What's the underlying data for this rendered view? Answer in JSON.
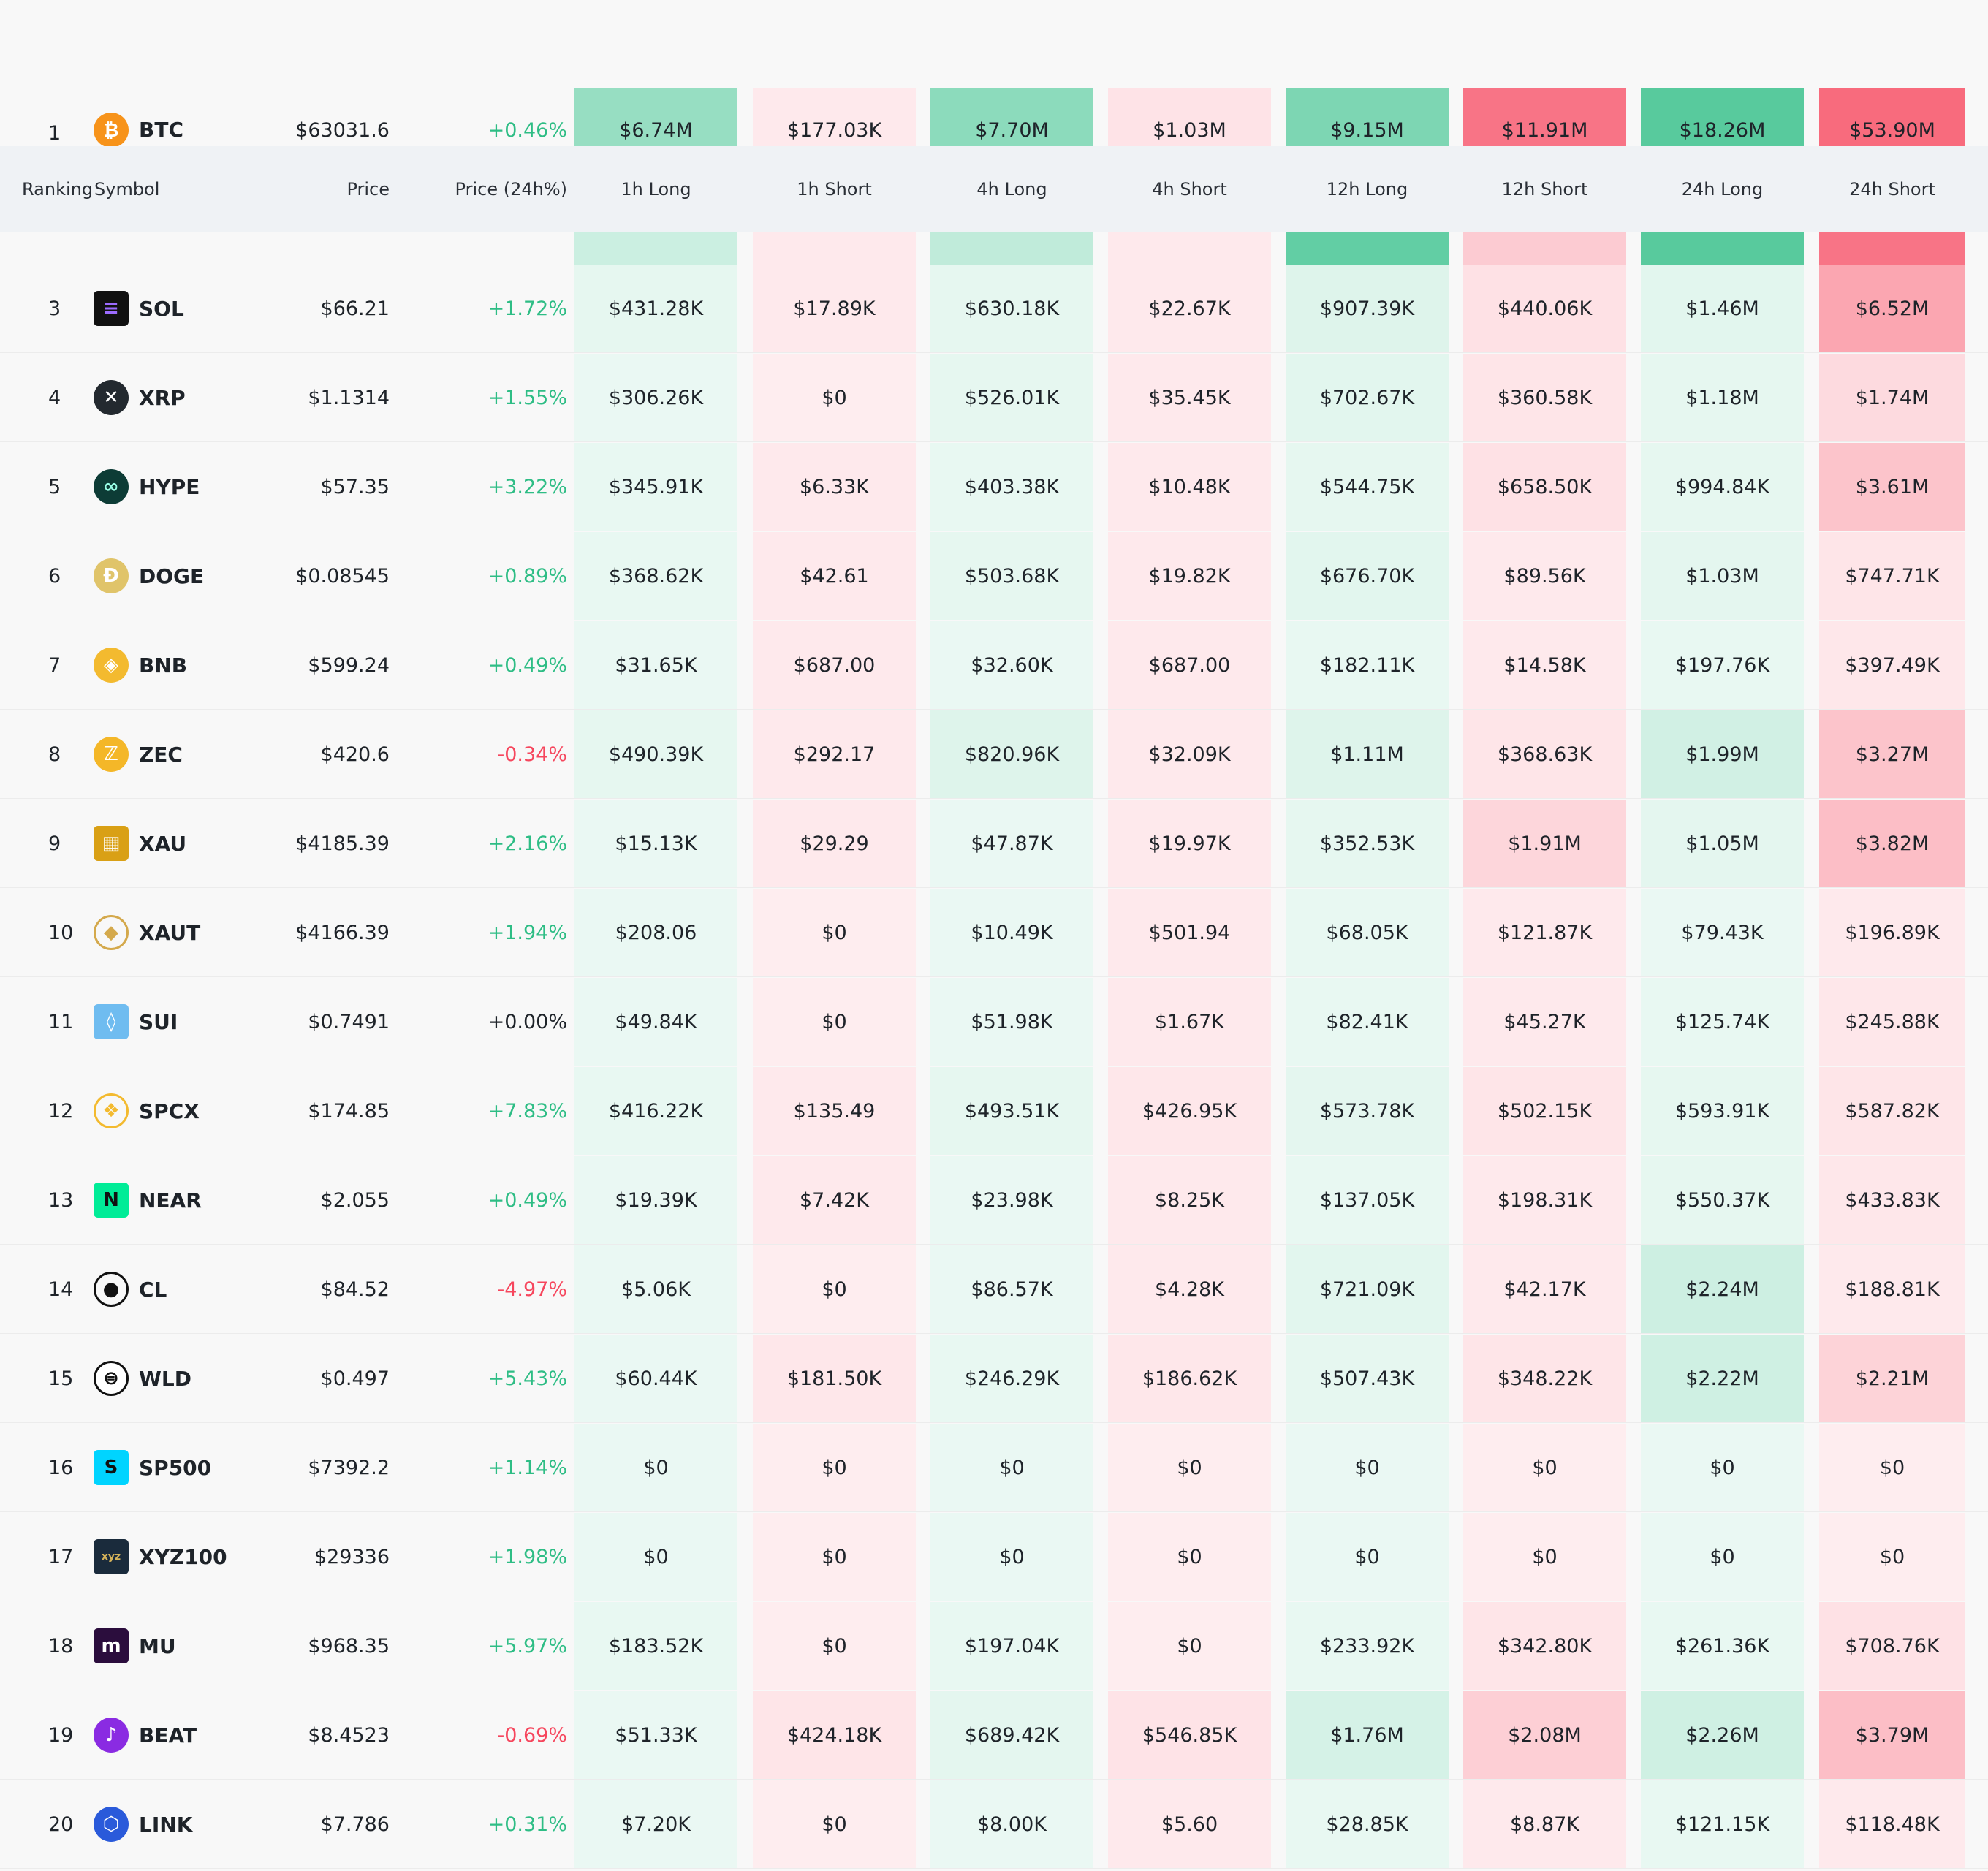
{
  "header": {
    "ranking": "Ranking",
    "symbol": "Symbol",
    "price": "Price",
    "change": "Price (24h%)",
    "h1_long": "1h Long",
    "h1_short": "1h Short",
    "h4_long": "4h Long",
    "h4_short": "4h Short",
    "h12_long": "12h Long",
    "h12_short": "12h Short",
    "h24_long": "24h Long",
    "h24_short": "24h Short"
  },
  "colors": {
    "long_base": "#2ebd85",
    "short_base": "#f6465d",
    "up": "#2ebd85",
    "down": "#f6465d"
  },
  "rows": [
    {
      "rank": "1",
      "symbol": "BTC",
      "icon": "bitcoin-icon",
      "price": "$63031.6",
      "change": "+0.46%",
      "dir": "up",
      "values": [
        "$6.74M",
        "$177.03K",
        "$7.70M",
        "$1.03M",
        "$9.15M",
        "$11.91M",
        "$18.26M",
        "$53.90M"
      ],
      "shades": [
        0.5,
        0.12,
        0.55,
        0.15,
        0.62,
        0.75,
        0.8,
        0.8
      ]
    },
    {
      "rank": "3",
      "symbol": "SOL",
      "icon": "solana-icon",
      "price": "$66.21",
      "change": "+1.72%",
      "dir": "up",
      "values": [
        "$431.28K",
        "$17.89K",
        "$630.18K",
        "$22.67K",
        "$907.39K",
        "$440.06K",
        "$1.46M",
        "$6.52M"
      ],
      "shades": [
        0.12,
        0.12,
        0.12,
        0.12,
        0.16,
        0.16,
        0.14,
        0.48
      ]
    },
    {
      "rank": "4",
      "symbol": "XRP",
      "icon": "xrp-icon",
      "price": "$1.1314",
      "change": "+1.55%",
      "dir": "up",
      "values": [
        "$306.26K",
        "$0",
        "$526.01K",
        "$35.45K",
        "$702.67K",
        "$360.58K",
        "$1.18M",
        "$1.74M"
      ],
      "shades": [
        0.1,
        0.1,
        0.12,
        0.12,
        0.14,
        0.14,
        0.12,
        0.2
      ]
    },
    {
      "rank": "5",
      "symbol": "HYPE",
      "icon": "hyperliquid-icon",
      "price": "$57.35",
      "change": "+3.22%",
      "dir": "up",
      "values": [
        "$345.91K",
        "$6.33K",
        "$403.38K",
        "$10.48K",
        "$544.75K",
        "$658.50K",
        "$994.84K",
        "$3.61M"
      ],
      "shades": [
        0.11,
        0.12,
        0.11,
        0.12,
        0.12,
        0.16,
        0.12,
        0.32
      ]
    },
    {
      "rank": "6",
      "symbol": "DOGE",
      "icon": "dogecoin-icon",
      "price": "$0.08545",
      "change": "+0.89%",
      "dir": "up",
      "values": [
        "$368.62K",
        "$42.61",
        "$503.68K",
        "$19.82K",
        "$676.70K",
        "$89.56K",
        "$1.03M",
        "$747.71K"
      ],
      "shades": [
        0.11,
        0.12,
        0.12,
        0.12,
        0.14,
        0.12,
        0.13,
        0.14
      ]
    },
    {
      "rank": "7",
      "symbol": "BNB",
      "icon": "bnb-icon",
      "price": "$599.24",
      "change": "+0.49%",
      "dir": "up",
      "values": [
        "$31.65K",
        "$687.00",
        "$32.60K",
        "$687.00",
        "$182.11K",
        "$14.58K",
        "$197.76K",
        "$397.49K"
      ],
      "shades": [
        0.1,
        0.12,
        0.1,
        0.12,
        0.11,
        0.12,
        0.11,
        0.13
      ]
    },
    {
      "rank": "8",
      "symbol": "ZEC",
      "icon": "zcash-icon",
      "price": "$420.6",
      "change": "-0.34%",
      "dir": "down",
      "values": [
        "$490.39K",
        "$292.17",
        "$820.96K",
        "$32.09K",
        "$1.11M",
        "$368.63K",
        "$1.99M",
        "$3.27M"
      ],
      "shades": [
        0.12,
        0.12,
        0.16,
        0.12,
        0.16,
        0.14,
        0.22,
        0.32
      ]
    },
    {
      "rank": "9",
      "symbol": "XAU",
      "icon": "gold-bars-icon",
      "price": "$4185.39",
      "change": "+2.16%",
      "dir": "up",
      "values": [
        "$15.13K",
        "$29.29",
        "$47.87K",
        "$19.97K",
        "$352.53K",
        "$1.91M",
        "$1.05M",
        "$3.82M"
      ],
      "shades": [
        0.1,
        0.12,
        0.1,
        0.12,
        0.12,
        0.22,
        0.13,
        0.35
      ]
    },
    {
      "rank": "10",
      "symbol": "XAUT",
      "icon": "tether-gold-icon",
      "price": "$4166.39",
      "change": "+1.94%",
      "dir": "up",
      "values": [
        "$208.06",
        "$0",
        "$10.49K",
        "$501.94",
        "$68.05K",
        "$121.87K",
        "$79.43K",
        "$196.89K"
      ],
      "shades": [
        0.1,
        0.1,
        0.1,
        0.12,
        0.11,
        0.12,
        0.1,
        0.12
      ]
    },
    {
      "rank": "11",
      "symbol": "SUI",
      "icon": "sui-icon",
      "price": "$0.7491",
      "change": "+0.00%",
      "dir": "flat",
      "values": [
        "$49.84K",
        "$0",
        "$51.98K",
        "$1.67K",
        "$82.41K",
        "$45.27K",
        "$125.74K",
        "$245.88K"
      ],
      "shades": [
        0.1,
        0.1,
        0.1,
        0.12,
        0.11,
        0.12,
        0.11,
        0.13
      ]
    },
    {
      "rank": "12",
      "symbol": "SPCX",
      "icon": "spcx-icon",
      "price": "$174.85",
      "change": "+7.83%",
      "dir": "up",
      "values": [
        "$416.22K",
        "$135.49",
        "$493.51K",
        "$426.95K",
        "$573.78K",
        "$502.15K",
        "$593.91K",
        "$587.82K"
      ],
      "shades": [
        0.11,
        0.12,
        0.12,
        0.13,
        0.13,
        0.14,
        0.12,
        0.14
      ]
    },
    {
      "rank": "13",
      "symbol": "NEAR",
      "icon": "near-icon",
      "price": "$2.055",
      "change": "+0.49%",
      "dir": "up",
      "values": [
        "$19.39K",
        "$7.42K",
        "$23.98K",
        "$8.25K",
        "$137.05K",
        "$198.31K",
        "$550.37K",
        "$433.83K"
      ],
      "shades": [
        0.1,
        0.12,
        0.1,
        0.12,
        0.11,
        0.12,
        0.12,
        0.13
      ]
    },
    {
      "rank": "14",
      "symbol": "CL",
      "icon": "oil-drop-icon",
      "price": "$84.52",
      "change": "-4.97%",
      "dir": "down",
      "values": [
        "$5.06K",
        "$0",
        "$86.57K",
        "$4.28K",
        "$721.09K",
        "$42.17K",
        "$2.24M",
        "$188.81K"
      ],
      "shades": [
        0.1,
        0.1,
        0.1,
        0.12,
        0.14,
        0.12,
        0.24,
        0.12
      ]
    },
    {
      "rank": "15",
      "symbol": "WLD",
      "icon": "worldcoin-icon",
      "price": "$0.497",
      "change": "+5.43%",
      "dir": "up",
      "values": [
        "$60.44K",
        "$181.50K",
        "$246.29K",
        "$186.62K",
        "$507.43K",
        "$348.22K",
        "$2.22M",
        "$2.21M"
      ],
      "shades": [
        0.1,
        0.13,
        0.11,
        0.13,
        0.12,
        0.14,
        0.23,
        0.24
      ]
    },
    {
      "rank": "16",
      "symbol": "SP500",
      "icon": "sp500-icon",
      "price": "$7392.2",
      "change": "+1.14%",
      "dir": "up",
      "values": [
        "$0",
        "$0",
        "$0",
        "$0",
        "$0",
        "$0",
        "$0",
        "$0"
      ],
      "shades": [
        0.1,
        0.1,
        0.1,
        0.1,
        0.1,
        0.1,
        0.1,
        0.1
      ]
    },
    {
      "rank": "17",
      "symbol": "XYZ100",
      "icon": "xyz-icon",
      "price": "$29336",
      "change": "+1.98%",
      "dir": "up",
      "values": [
        "$0",
        "$0",
        "$0",
        "$0",
        "$0",
        "$0",
        "$0",
        "$0"
      ],
      "shades": [
        0.1,
        0.1,
        0.1,
        0.1,
        0.1,
        0.1,
        0.1,
        0.1
      ]
    },
    {
      "rank": "18",
      "symbol": "MU",
      "icon": "micron-icon",
      "price": "$968.35",
      "change": "+5.97%",
      "dir": "up",
      "values": [
        "$183.52K",
        "$0",
        "$197.04K",
        "$0",
        "$233.92K",
        "$342.80K",
        "$261.36K",
        "$708.76K"
      ],
      "shades": [
        0.11,
        0.1,
        0.11,
        0.1,
        0.11,
        0.14,
        0.11,
        0.16
      ]
    },
    {
      "rank": "19",
      "symbol": "BEAT",
      "icon": "beat-icon",
      "price": "$8.4523",
      "change": "-0.69%",
      "dir": "down",
      "values": [
        "$51.33K",
        "$424.18K",
        "$689.42K",
        "$546.85K",
        "$1.76M",
        "$2.08M",
        "$2.26M",
        "$3.79M"
      ],
      "shades": [
        0.1,
        0.14,
        0.13,
        0.15,
        0.2,
        0.26,
        0.23,
        0.35
      ]
    },
    {
      "rank": "20",
      "symbol": "LINK",
      "icon": "chainlink-icon",
      "price": "$7.786",
      "change": "+0.31%",
      "dir": "up",
      "values": [
        "$7.20K",
        "$0",
        "$8.00K",
        "$5.60",
        "$28.85K",
        "$8.87K",
        "$121.15K",
        "$118.48K"
      ],
      "shades": [
        0.1,
        0.1,
        0.1,
        0.12,
        0.11,
        0.12,
        0.11,
        0.12
      ]
    }
  ],
  "hidden_row_strip_shades": [
    0.25,
    0.12,
    0.3,
    0.12,
    0.75,
    0.28,
    0.8,
    0.75
  ]
}
